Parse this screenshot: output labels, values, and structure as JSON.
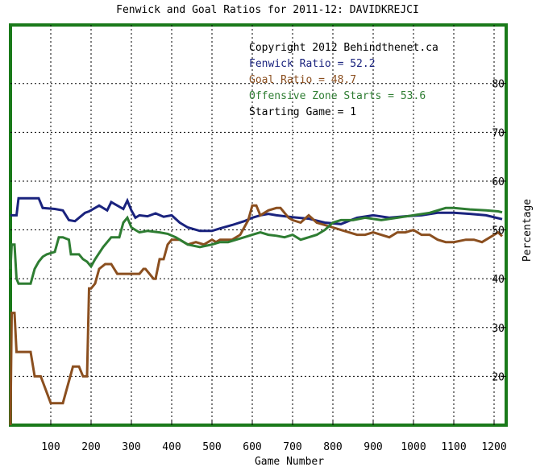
{
  "chart_data": {
    "type": "line",
    "title": "Fenwick and Goal Ratios for 2011-12: DAVIDKREJCI",
    "xlabel": "Game Number",
    "ylabel": "Percentage",
    "xlim": [
      0,
      1230
    ],
    "ylim": [
      10,
      92
    ],
    "x_ticks": [
      100,
      200,
      300,
      400,
      500,
      600,
      700,
      800,
      900,
      1000,
      1100,
      1200
    ],
    "y_ticks": [
      20,
      30,
      40,
      50,
      60,
      70,
      80
    ],
    "grid": true,
    "colors": {
      "frame": "#1a7a1a",
      "fenwick": "#1a237e",
      "goal": "#8b4f1f",
      "ozs": "#2e7d32"
    },
    "annotations": [
      {
        "text": "Copyright 2012 Behindthenet.ca",
        "color": "#000000"
      },
      {
        "text": "Fenwick Ratio = 52.2",
        "color": "#1a237e"
      },
      {
        "text": "Goal Ratio = 48.7",
        "color": "#8b4f1f"
      },
      {
        "text": "Offensive Zone Starts = 53.6",
        "color": "#2e7d32"
      },
      {
        "text": "Starting Game = 1",
        "color": "#000000"
      }
    ],
    "series": [
      {
        "key": "fenwick",
        "color": "#1a237e",
        "x": [
          0,
          15,
          20,
          70,
          80,
          110,
          130,
          145,
          160,
          185,
          195,
          220,
          240,
          250,
          280,
          290,
          300,
          310,
          320,
          340,
          360,
          380,
          400,
          420,
          440,
          470,
          500,
          520,
          550,
          580,
          600,
          620,
          640,
          660,
          700,
          740,
          780,
          820,
          860,
          900,
          940,
          980,
          1020,
          1060,
          1100,
          1140,
          1180,
          1210,
          1220
        ],
        "values": [
          53,
          53,
          56.5,
          56.5,
          54.5,
          54.3,
          54,
          52,
          51.8,
          53.5,
          53.8,
          55,
          54,
          55.7,
          54.3,
          56,
          54,
          52.5,
          53,
          52.8,
          53.4,
          52.7,
          53,
          51.5,
          50.5,
          49.8,
          49.8,
          50.3,
          51,
          51.8,
          52.5,
          53,
          53.3,
          53,
          52.6,
          52.3,
          51.5,
          51.2,
          52.5,
          53,
          52.5,
          52.8,
          53,
          53.5,
          53.5,
          53.3,
          53,
          52.4,
          52.2
        ]
      },
      {
        "key": "goal",
        "color": "#8b4f1f",
        "x": [
          0,
          3,
          10,
          15,
          20,
          50,
          60,
          75,
          100,
          105,
          120,
          130,
          155,
          170,
          180,
          190,
          195,
          200,
          210,
          220,
          235,
          250,
          265,
          280,
          300,
          320,
          330,
          335,
          355,
          360,
          370,
          380,
          390,
          400,
          410,
          420,
          430,
          440,
          460,
          480,
          500,
          510,
          520,
          550,
          570,
          590,
          600,
          610,
          620,
          640,
          660,
          670,
          690,
          700,
          720,
          740,
          760,
          780,
          800,
          820,
          840,
          860,
          880,
          900,
          940,
          960,
          980,
          1000,
          1020,
          1040,
          1060,
          1080,
          1100,
          1130,
          1150,
          1170,
          1190,
          1210,
          1220
        ],
        "values": [
          10,
          33,
          33,
          25,
          25,
          25,
          20,
          20,
          14.5,
          14.5,
          14.5,
          14.5,
          22,
          22,
          20,
          20,
          38,
          38,
          39,
          42,
          43,
          43,
          41,
          41,
          41,
          41,
          42,
          42,
          40,
          40,
          44,
          44,
          47,
          48,
          48,
          48,
          47.5,
          47,
          47.5,
          47,
          48,
          47.5,
          48,
          48,
          49,
          52,
          55,
          55,
          53,
          54,
          54.5,
          54.5,
          52.5,
          52,
          51.5,
          53,
          51.5,
          51,
          50.5,
          50,
          49.5,
          49,
          49,
          49.5,
          48.5,
          49.5,
          49.5,
          50,
          49,
          49,
          48,
          47.5,
          47.5,
          48,
          48,
          47.5,
          48.5,
          49.5,
          48.7
        ]
      },
      {
        "key": "ozs",
        "color": "#2e7d32",
        "x": [
          0,
          3,
          10,
          15,
          20,
          50,
          60,
          70,
          80,
          90,
          110,
          120,
          130,
          145,
          150,
          170,
          180,
          190,
          200,
          210,
          230,
          250,
          270,
          280,
          290,
          300,
          310,
          320,
          340,
          370,
          390,
          410,
          440,
          470,
          500,
          520,
          540,
          560,
          580,
          600,
          620,
          640,
          660,
          680,
          700,
          720,
          740,
          760,
          780,
          800,
          820,
          850,
          880,
          920,
          960,
          1000,
          1040,
          1060,
          1080,
          1100,
          1140,
          1180,
          1210,
          1220
        ],
        "values": [
          42,
          47,
          47,
          40,
          39,
          39,
          42,
          43.5,
          44.5,
          45,
          45.5,
          48.5,
          48.5,
          48,
          45,
          45,
          44,
          43.5,
          42.5,
          44,
          46.5,
          48.5,
          48.5,
          51.5,
          52.5,
          50.5,
          50,
          49.5,
          49.8,
          49.5,
          49.2,
          48.5,
          47,
          46.5,
          47,
          47.5,
          47.5,
          48,
          48.5,
          49,
          49.5,
          49,
          48.8,
          48.5,
          49,
          48,
          48.5,
          49,
          50,
          51.5,
          52,
          52,
          52.5,
          52,
          52.5,
          53,
          53.5,
          54,
          54.5,
          54.5,
          54.2,
          54,
          53.8,
          53.6
        ]
      }
    ]
  }
}
